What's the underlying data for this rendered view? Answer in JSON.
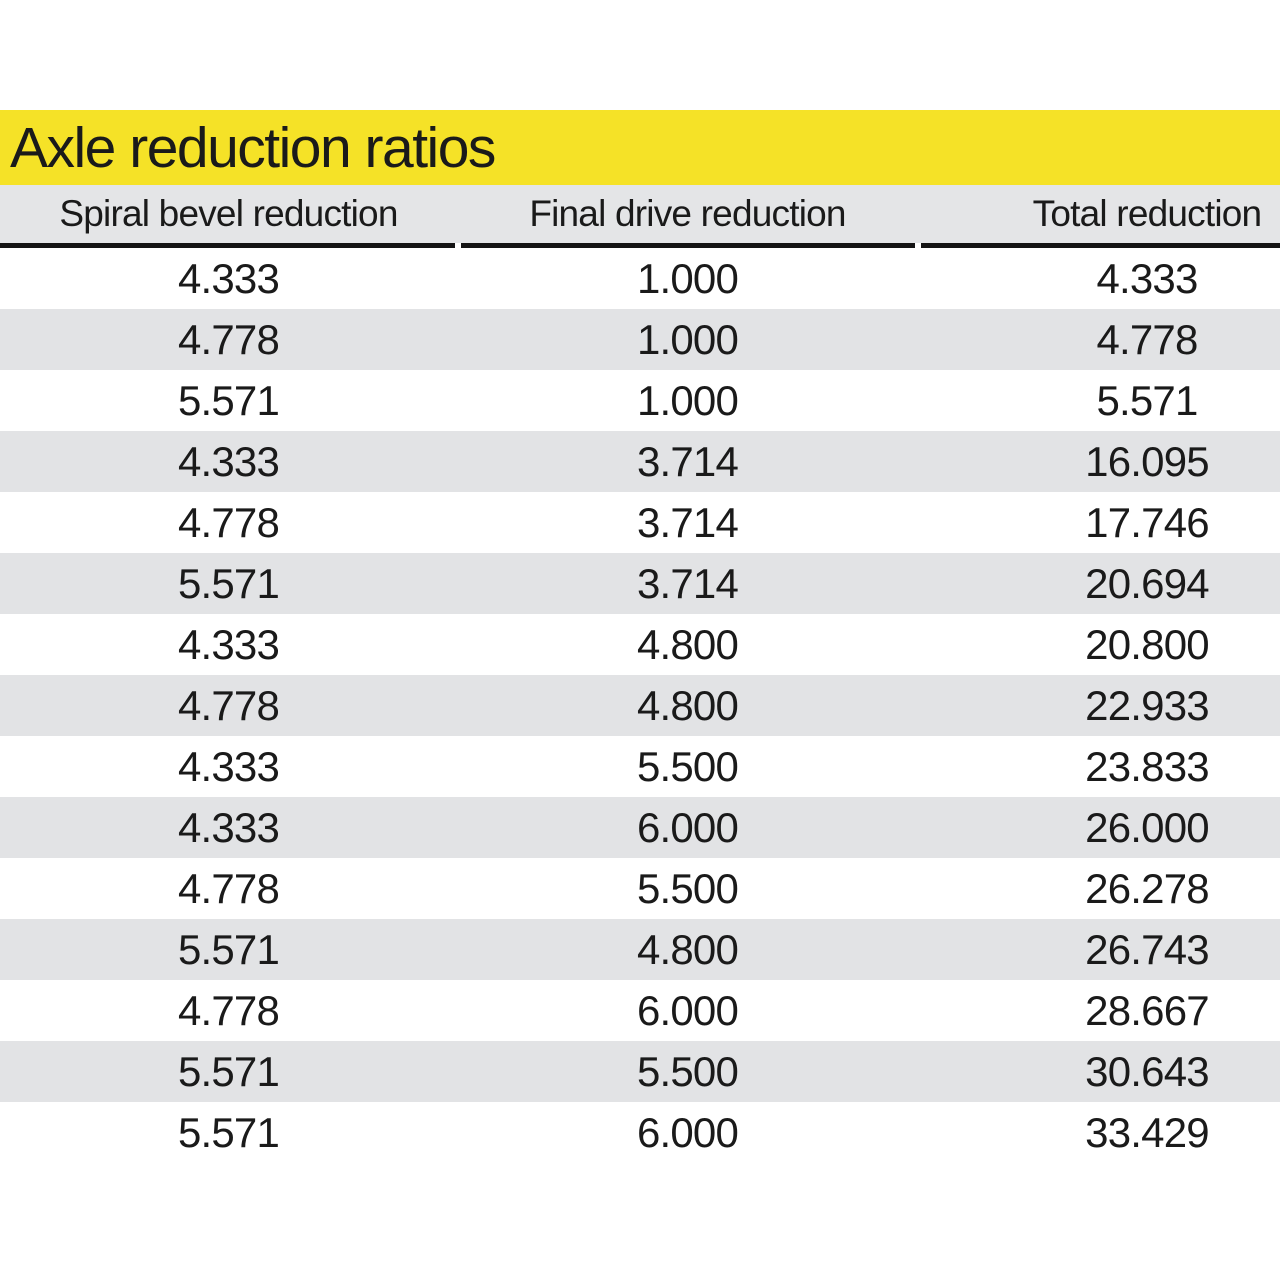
{
  "title": "Axle reduction ratios",
  "table": {
    "columns": [
      "Spiral bevel reduction",
      "Final drive reduction",
      "Total reduction"
    ],
    "rows": [
      [
        "4.333",
        "1.000",
        "4.333"
      ],
      [
        "4.778",
        "1.000",
        "4.778"
      ],
      [
        "5.571",
        "1.000",
        "5.571"
      ],
      [
        "4.333",
        "3.714",
        "16.095"
      ],
      [
        "4.778",
        "3.714",
        "17.746"
      ],
      [
        "5.571",
        "3.714",
        "20.694"
      ],
      [
        "4.333",
        "4.800",
        "20.800"
      ],
      [
        "4.778",
        "4.800",
        "22.933"
      ],
      [
        "4.333",
        "5.500",
        "23.833"
      ],
      [
        "4.333",
        "6.000",
        "26.000"
      ],
      [
        "4.778",
        "5.500",
        "26.278"
      ],
      [
        "5.571",
        "4.800",
        "26.743"
      ],
      [
        "4.778",
        "6.000",
        "28.667"
      ],
      [
        "5.571",
        "5.500",
        "30.643"
      ],
      [
        "5.571",
        "6.000",
        "33.429"
      ]
    ]
  },
  "colors": {
    "title_bar_yellow": "#F5E227",
    "header_band_gray": "#E4E5E7",
    "row_stripe_gray": "#E2E3E5",
    "rule_black": "#141414",
    "text_black": "#1A1A1A",
    "background_white": "#FFFFFF"
  }
}
